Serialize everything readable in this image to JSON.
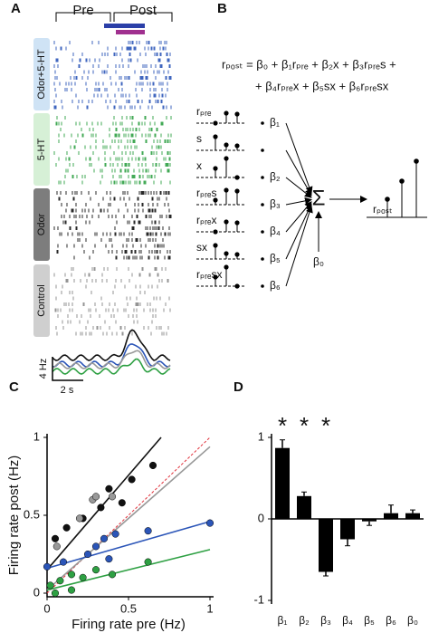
{
  "panels": {
    "A": {
      "letter": "A",
      "pre": "Pre",
      "post": "Post",
      "groups": [
        "Odor+5-HT",
        "5-HT",
        "Odor",
        "Control"
      ],
      "scale_y": "4 Hz",
      "scale_x": "2 s"
    },
    "B": {
      "letter": "B",
      "equation": [
        "rₚₒₛₜ = β₀ + β₁rₚᵣₑ + β₂x + β₃rₚᵣₑs +",
        "+ β₄rₚᵣₑx + β₅sx + β₆rₚᵣₑsx"
      ],
      "inputs": [
        {
          "label": "rₚᵣₑ",
          "beta": "β₁"
        },
        {
          "label": "s",
          "beta": null
        },
        {
          "label": "x",
          "beta": "β₂"
        },
        {
          "label": "rₚᵣₑs",
          "beta": "β₃"
        },
        {
          "label": "rₚᵣₑx",
          "beta": "β₄"
        },
        {
          "label": "sx",
          "beta": "β₅"
        },
        {
          "label": "rₚᵣₑsx",
          "beta": "β₆"
        }
      ],
      "intercept": "β₀",
      "output": "rₚₒₛₜ",
      "sum": "Σ"
    },
    "C": {
      "letter": "C"
    },
    "D": {
      "letter": "D"
    }
  },
  "chart_data": [
    {
      "type": "scatter",
      "xlabel": "Firing rate pre (Hz)",
      "ylabel": "Firing rate post (Hz)",
      "xlim": [
        0,
        1
      ],
      "ylim": [
        0,
        1
      ],
      "xticks": [
        0,
        0.5,
        1
      ],
      "yticks": [
        0,
        0.5,
        1
      ],
      "unity_line": {
        "color": "#e0303a",
        "x": [
          0,
          1
        ],
        "y": [
          0,
          1
        ]
      },
      "series": [
        {
          "color": "#111111",
          "x": [
            0.05,
            0.12,
            0.22,
            0.33,
            0.38,
            0.46,
            0.52,
            0.65
          ],
          "y": [
            0.35,
            0.42,
            0.48,
            0.55,
            0.67,
            0.58,
            0.73,
            0.82
          ],
          "fit": {
            "x": [
              0,
              0.7
            ],
            "y": [
              0.15,
              1
            ]
          }
        },
        {
          "color": "#999999",
          "x": [
            0.06,
            0.2,
            0.28,
            0.3,
            0.4
          ],
          "y": [
            0.3,
            0.48,
            0.6,
            0.62,
            0.62
          ],
          "fit": {
            "x": [
              0,
              1
            ],
            "y": [
              0.02,
              0.94
            ]
          }
        },
        {
          "color": "#2b55b8",
          "x": [
            0,
            0.1,
            0.25,
            0.3,
            0.35,
            0.42,
            0.38,
            0.62,
            1
          ],
          "y": [
            0.17,
            0.2,
            0.25,
            0.3,
            0.35,
            0.38,
            0.22,
            0.4,
            0.45
          ],
          "fit": {
            "x": [
              0,
              1
            ],
            "y": [
              0.16,
              0.46
            ]
          }
        },
        {
          "color": "#2ea043",
          "x": [
            0.02,
            0.05,
            0.08,
            0.15,
            0.22,
            0.3,
            0.4,
            0.62,
            0.15
          ],
          "y": [
            0.05,
            0,
            0.08,
            0.12,
            0.1,
            0.15,
            0.12,
            0.2,
            0.02
          ],
          "fit": {
            "x": [
              0,
              1
            ],
            "y": [
              0.02,
              0.28
            ]
          }
        }
      ]
    },
    {
      "type": "bar",
      "categories": [
        "β₁",
        "β₂",
        "β₃",
        "β₄",
        "β₅",
        "β₆",
        "β₀"
      ],
      "values": [
        0.87,
        0.28,
        -0.65,
        -0.25,
        -0.03,
        0.07,
        0.07
      ],
      "errors": [
        0.1,
        0.05,
        0.05,
        0.08,
        0.05,
        0.1,
        0.04
      ],
      "annotations": [
        "*",
        "*",
        "*",
        null,
        null,
        null,
        null
      ],
      "color": "#000000",
      "ylim": [
        -1,
        1
      ],
      "yticks": [
        -1,
        0,
        1
      ]
    }
  ]
}
